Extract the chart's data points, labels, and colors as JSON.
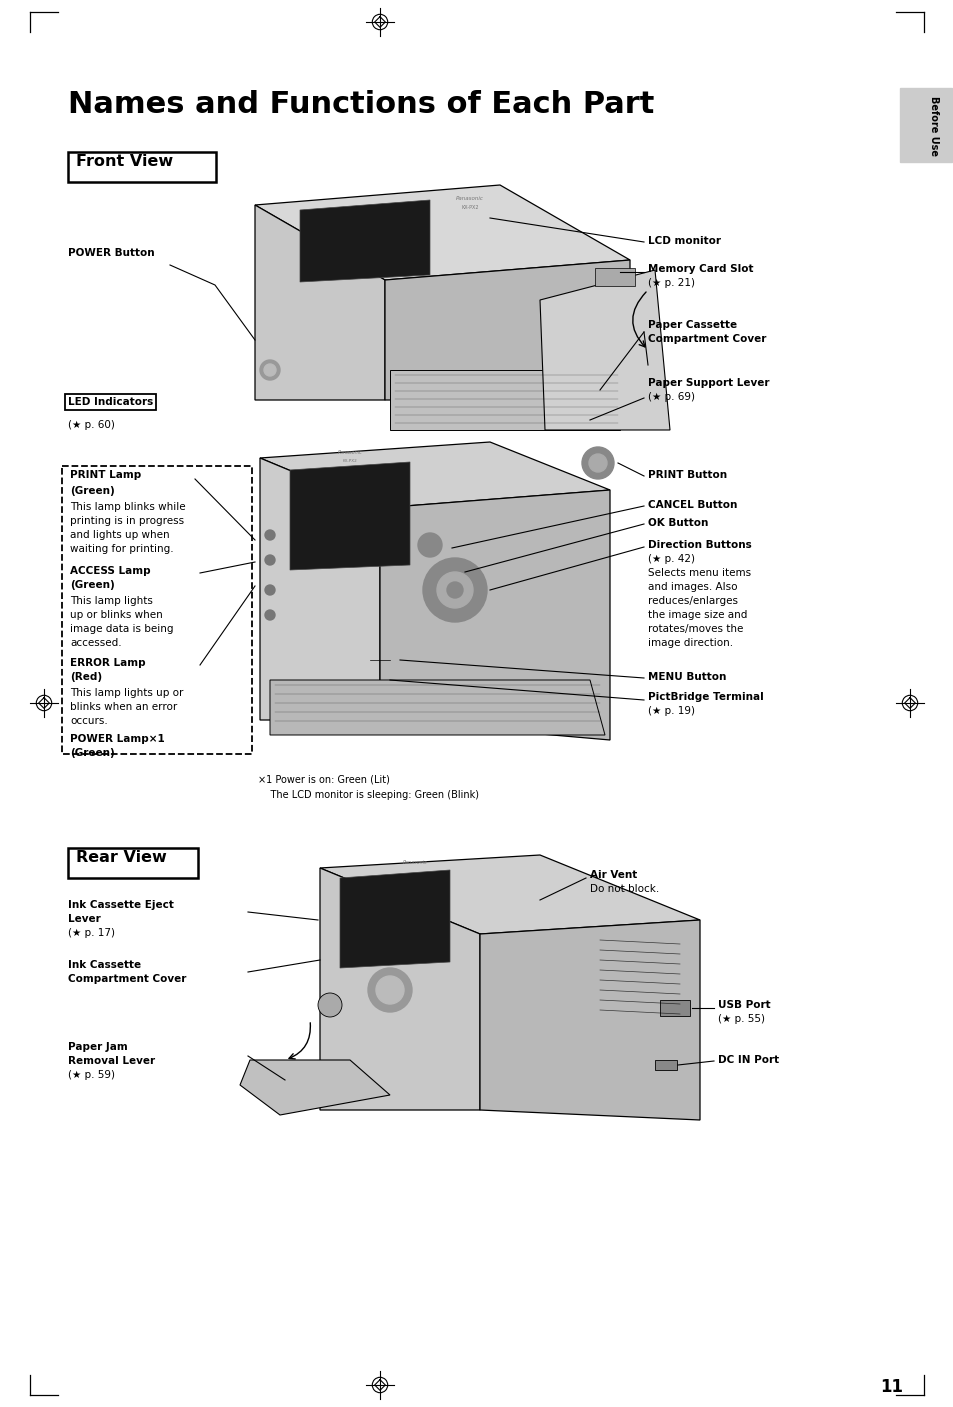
{
  "title": "Names and Functions of Each Part",
  "title_fontsize": 22,
  "title_fontweight": "bold",
  "bg_color": "#ffffff",
  "page_number": "11",
  "sidebar_text": "Before Use",
  "sidebar_color": "#cccccc",
  "front_view_label": "Front View",
  "rear_view_label": "Rear View",
  "fs": 7.5,
  "footnote1": "×1 Power is on: Green (Lit)",
  "footnote2": "    The LCD monitor is sleeping: Green (Blink)"
}
